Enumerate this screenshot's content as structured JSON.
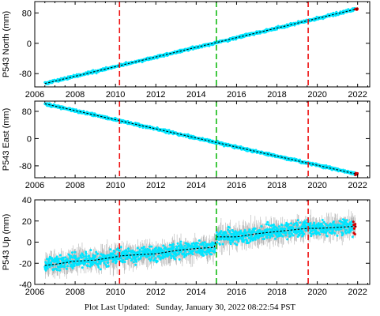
{
  "footer": {
    "label": "Plot Last Updated:",
    "timestamp": "Sunday, January 30, 2022 08:22:54 PST"
  },
  "colors": {
    "daily_points": "#00e5ff",
    "error_bars": "#b4b4b4",
    "recent_points": "#d40000",
    "trend_line": "#000000",
    "vertical_red": "#ee1111",
    "vertical_green": "#11bb11"
  },
  "chart_data": [
    {
      "type": "scatter",
      "ylabel": "P543 North (mm)",
      "xlim": [
        2006,
        2022.6
      ],
      "ylim": [
        -115,
        110
      ],
      "xticks": [
        2006,
        2008,
        2010,
        2012,
        2014,
        2016,
        2018,
        2020,
        2022
      ],
      "yticks": [
        -80,
        0,
        80
      ],
      "trend": {
        "x": [
          2006.5,
          2022
        ],
        "y": [
          -106,
          91
        ]
      },
      "markers": [
        {
          "x": 2010.2,
          "color": "red"
        },
        {
          "x": 2015.0,
          "color": "green"
        },
        {
          "x": 2019.55,
          "color": "red"
        }
      ],
      "error_bar_scale": 1.5,
      "noise": 2.5
    },
    {
      "type": "scatter",
      "ylabel": "P543 East (mm)",
      "xlim": [
        2006,
        2022.6
      ],
      "ylim": [
        -115,
        110
      ],
      "xticks": [
        2006,
        2008,
        2010,
        2012,
        2014,
        2016,
        2018,
        2020,
        2022
      ],
      "yticks": [
        -80,
        0,
        80
      ],
      "trend": {
        "x": [
          2006.5,
          2022
        ],
        "y": [
          102,
          -105
        ]
      },
      "markers": [
        {
          "x": 2010.2,
          "color": "red"
        },
        {
          "x": 2015.0,
          "color": "green"
        },
        {
          "x": 2019.55,
          "color": "red"
        }
      ],
      "error_bar_scale": 1.5,
      "noise": 2.8
    },
    {
      "type": "scatter",
      "ylabel": "P543 Up (mm)",
      "xlim": [
        2006,
        2022.6
      ],
      "ylim": [
        -40,
        40
      ],
      "xticks": [
        2006,
        2008,
        2010,
        2012,
        2014,
        2016,
        2018,
        2020,
        2022
      ],
      "yticks": [
        -40,
        -20,
        0,
        20,
        40
      ],
      "trend": {
        "x": [
          2006.5,
          2007,
          2008,
          2009,
          2010,
          2010.2,
          2011,
          2012,
          2013,
          2014,
          2014.9,
          2015.0,
          2016,
          2017,
          2018,
          2019,
          2019.5,
          2020,
          2021,
          2021.9
        ],
        "y": [
          -22,
          -21,
          -18,
          -17,
          -14,
          -13,
          -12,
          -11,
          -8,
          -6,
          -5,
          5,
          5,
          8,
          10,
          12,
          13,
          13,
          14,
          15
        ]
      },
      "markers": [
        {
          "x": 2010.2,
          "color": "red"
        },
        {
          "x": 2015.0,
          "color": "green"
        },
        {
          "x": 2019.55,
          "color": "red"
        }
      ],
      "error_bar_scale": 7,
      "noise": 5
    }
  ]
}
